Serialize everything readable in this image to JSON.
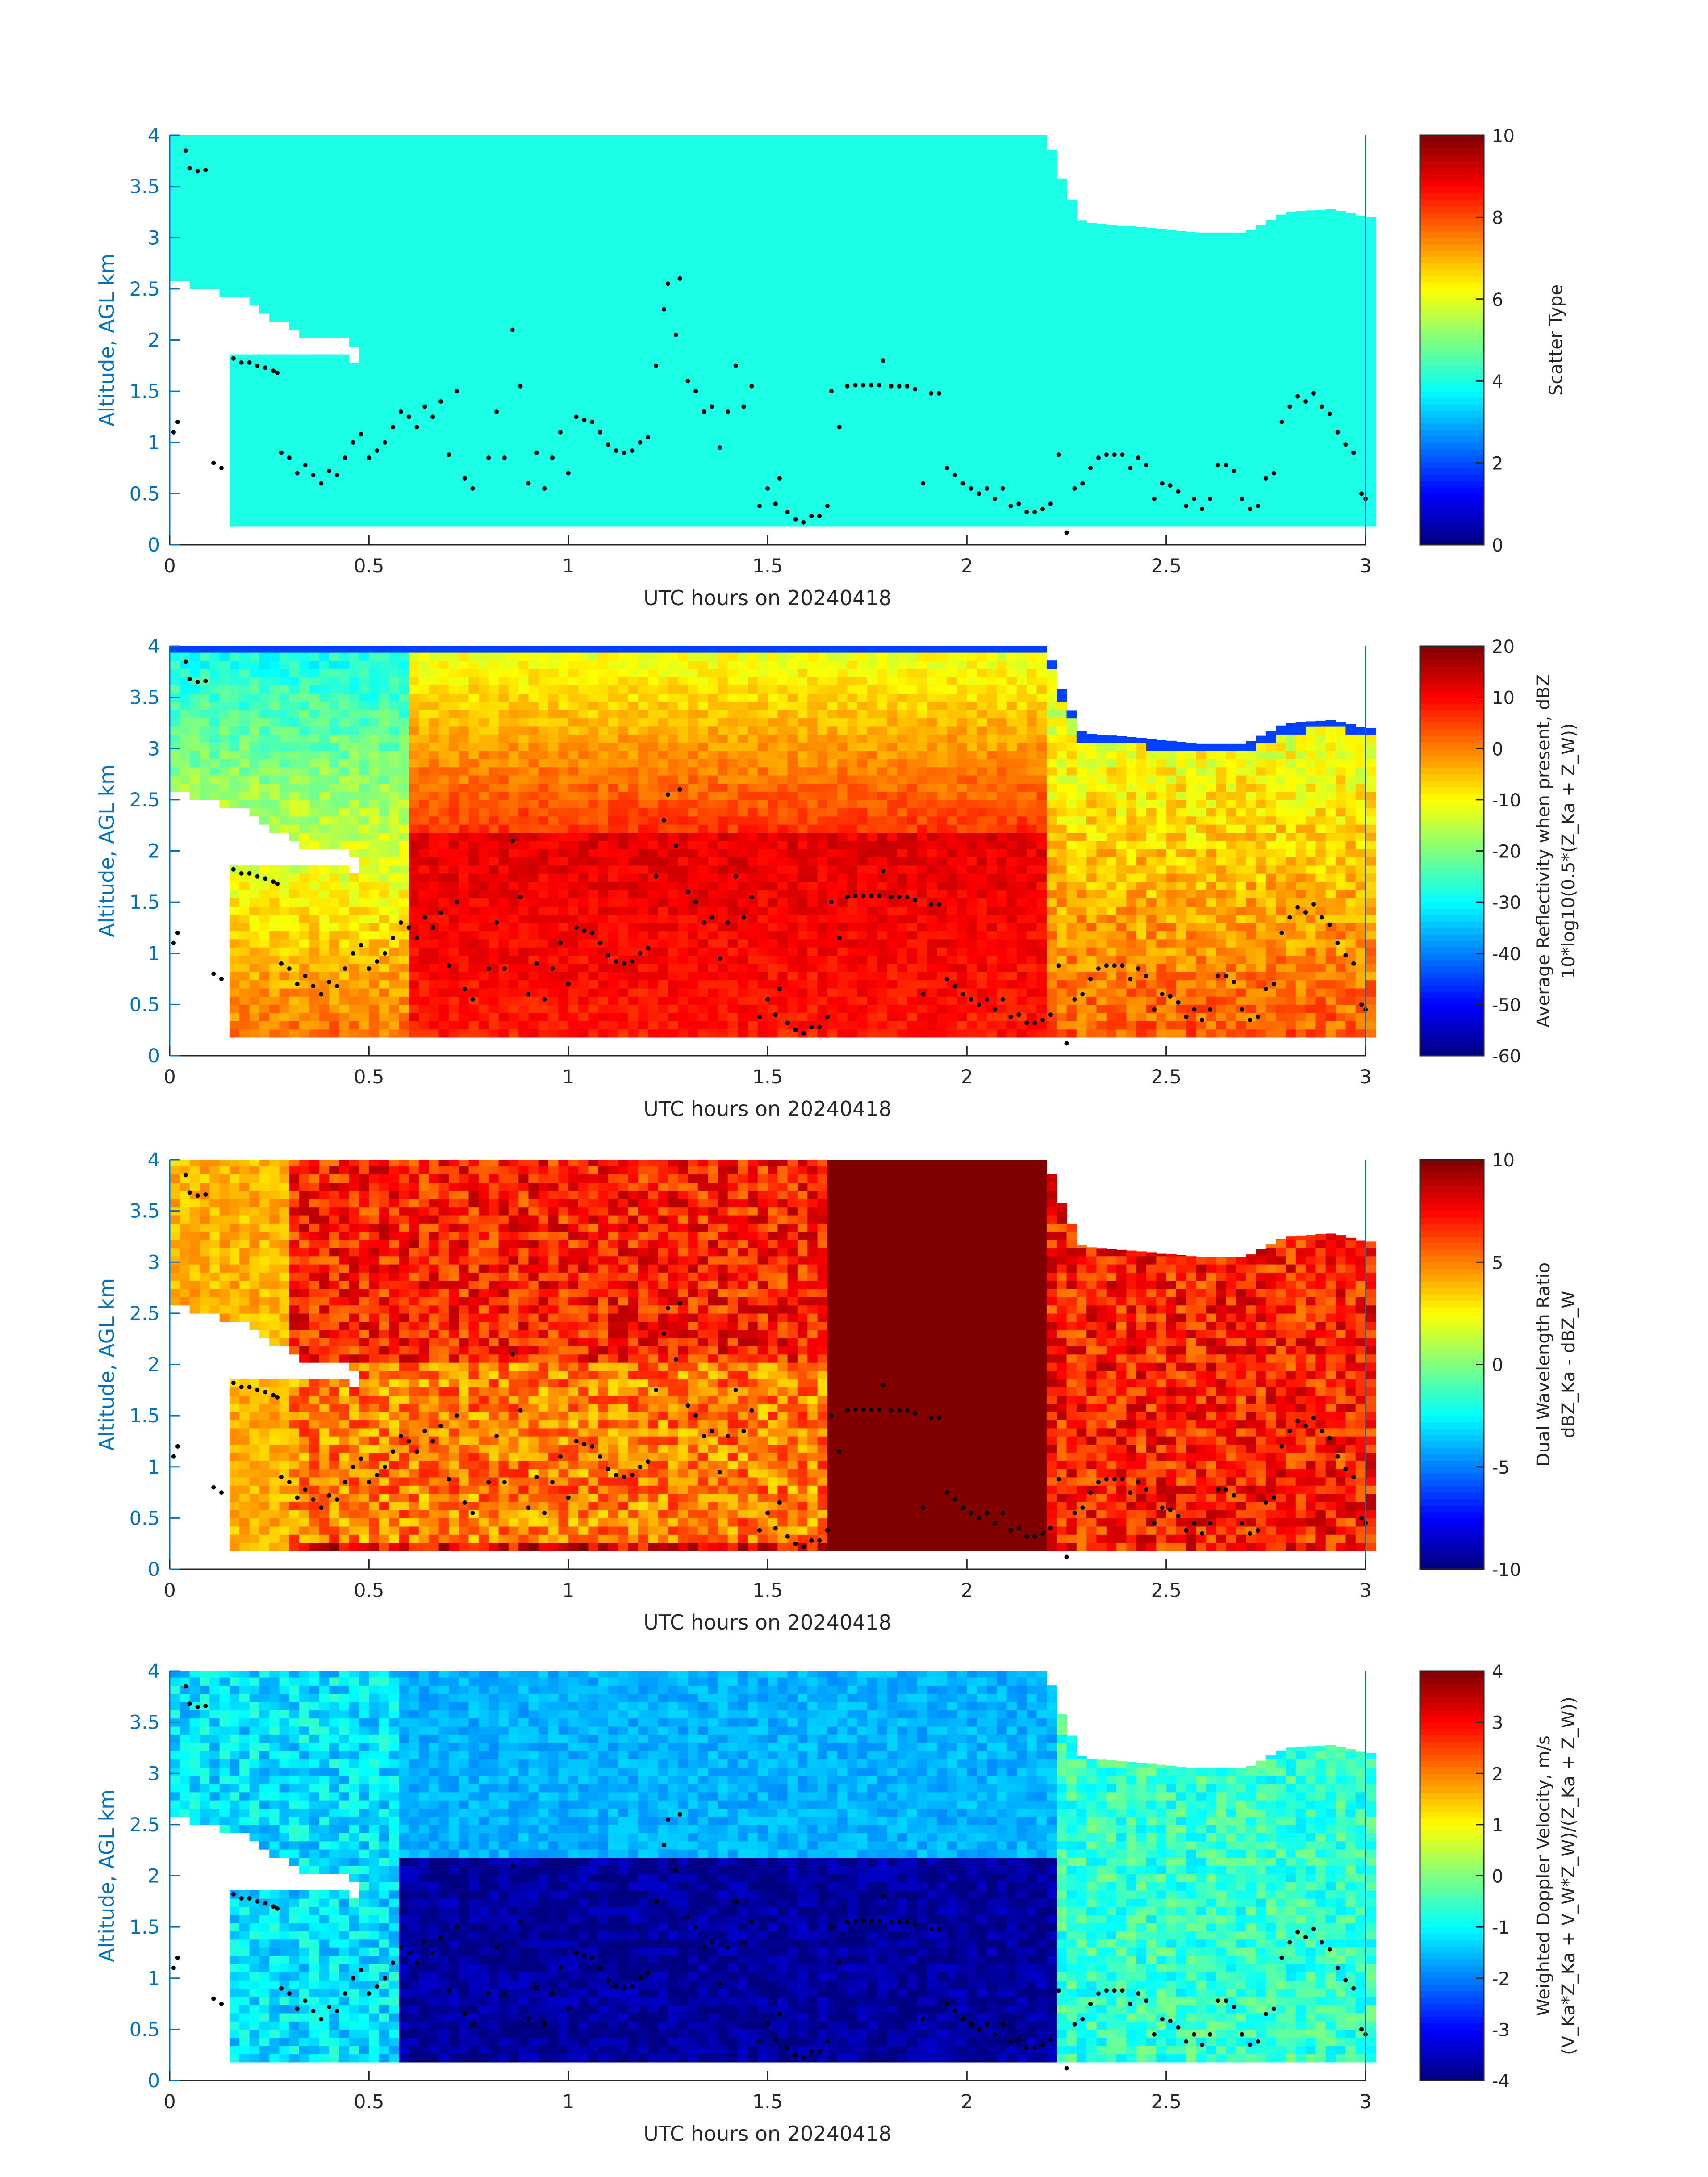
{
  "figure": {
    "background": "#ffffff",
    "axis_color": "#0072bd",
    "text_color": "#262626",
    "dot_color": "#000000"
  },
  "chart_data": [
    {
      "type": "heatmap",
      "xlabel": "UTC hours on 20240418",
      "ylabel": "Altitude, AGL km",
      "xlim": [
        0,
        3
      ],
      "ylim": [
        0,
        4
      ],
      "xticks": [
        0,
        0.5,
        1,
        1.5,
        2,
        2.5,
        3
      ],
      "xtick_labels": [
        "0",
        "0.5",
        "1",
        "1.5",
        "2",
        "2.5",
        "3"
      ],
      "yticks": [
        0,
        0.5,
        1,
        1.5,
        2,
        2.5,
        3,
        3.5,
        4
      ],
      "ytick_labels": [
        "0",
        "0.5",
        "1",
        "1.5",
        "2",
        "2.5",
        "3",
        "3.5",
        "4"
      ],
      "colorbar": {
        "label_lines": [
          "Scatter Type"
        ],
        "clim": [
          0,
          10
        ],
        "ticks": [
          0,
          2,
          4,
          6,
          8,
          10
        ],
        "tick_labels": [
          "0",
          "2",
          "4",
          "6",
          "8",
          "10"
        ],
        "colormap": "jet"
      },
      "field": "scatter_type"
    },
    {
      "type": "heatmap",
      "xlabel": "UTC hours on 20240418",
      "ylabel": "Altitude, AGL km",
      "xlim": [
        0,
        3
      ],
      "ylim": [
        0,
        4
      ],
      "xticks": [
        0,
        0.5,
        1,
        1.5,
        2,
        2.5,
        3
      ],
      "xtick_labels": [
        "0",
        "0.5",
        "1",
        "1.5",
        "2",
        "2.5",
        "3"
      ],
      "yticks": [
        0,
        0.5,
        1,
        1.5,
        2,
        2.5,
        3,
        3.5,
        4
      ],
      "ytick_labels": [
        "0",
        "0.5",
        "1",
        "1.5",
        "2",
        "2.5",
        "3",
        "3.5",
        "4"
      ],
      "colorbar": {
        "label_lines": [
          "Average Reflectivity when present, dBZ",
          "10*log10(0.5*(Z_Ka + Z_W))"
        ],
        "clim": [
          -60,
          20
        ],
        "ticks": [
          -60,
          -50,
          -40,
          -30,
          -20,
          -10,
          0,
          10,
          20
        ],
        "tick_labels": [
          "-60",
          "-50",
          "-40",
          "-30",
          "-20",
          "-10",
          "0",
          "10",
          "20"
        ],
        "colormap": "jet"
      },
      "field": "reflectivity"
    },
    {
      "type": "heatmap",
      "xlabel": "UTC hours on 20240418",
      "ylabel": "Altitude, AGL km",
      "xlim": [
        0,
        3
      ],
      "ylim": [
        0,
        4
      ],
      "xticks": [
        0,
        0.5,
        1,
        1.5,
        2,
        2.5,
        3
      ],
      "xtick_labels": [
        "0",
        "0.5",
        "1",
        "1.5",
        "2",
        "2.5",
        "3"
      ],
      "yticks": [
        0,
        0.5,
        1,
        1.5,
        2,
        2.5,
        3,
        3.5,
        4
      ],
      "ytick_labels": [
        "0",
        "0.5",
        "1",
        "1.5",
        "2",
        "2.5",
        "3",
        "3.5",
        "4"
      ],
      "colorbar": {
        "label_lines": [
          "Dual Wavelength Ratio",
          "dBZ_Ka - dBZ_W"
        ],
        "clim": [
          -10,
          10
        ],
        "ticks": [
          -10,
          -5,
          0,
          5,
          10
        ],
        "tick_labels": [
          "-10",
          "-5",
          "0",
          "5",
          "10"
        ],
        "colormap": "jet"
      },
      "field": "dwr"
    },
    {
      "type": "heatmap",
      "xlabel": "UTC hours on 20240418",
      "ylabel": "Altitude, AGL km",
      "xlim": [
        0,
        3
      ],
      "ylim": [
        0,
        4
      ],
      "xticks": [
        0,
        0.5,
        1,
        1.5,
        2,
        2.5,
        3
      ],
      "xtick_labels": [
        "0",
        "0.5",
        "1",
        "1.5",
        "2",
        "2.5",
        "3"
      ],
      "yticks": [
        0,
        0.5,
        1,
        1.5,
        2,
        2.5,
        3,
        3.5,
        4
      ],
      "ytick_labels": [
        "0",
        "0.5",
        "1",
        "1.5",
        "2",
        "2.5",
        "3",
        "3.5",
        "4"
      ],
      "colorbar": {
        "label_lines": [
          "Weighted Doppler Velocity, m/s",
          "(V_Ka*Z_Ka + V_W*Z_W)/(Z_Ka + Z_W))"
        ],
        "clim": [
          -4,
          4
        ],
        "ticks": [
          -4,
          -3,
          -2,
          -1,
          0,
          1,
          2,
          3,
          4
        ],
        "tick_labels": [
          "-4",
          "-3",
          "-2",
          "-1",
          "0",
          "1",
          "2",
          "3",
          "4"
        ],
        "colormap": "jet"
      },
      "field": "velocity"
    }
  ],
  "cloud_mask": {
    "top_profile": [
      [
        0.0,
        4.0
      ],
      [
        2.2,
        4.0
      ],
      [
        2.24,
        3.55
      ],
      [
        2.29,
        3.15
      ],
      [
        2.45,
        3.1
      ],
      [
        2.58,
        3.05
      ],
      [
        2.7,
        3.05
      ],
      [
        2.8,
        3.25
      ],
      [
        2.92,
        3.28
      ],
      [
        3.0,
        3.2
      ]
    ],
    "base_km": 0.18,
    "gap_region": [
      [
        0.0,
        2.6
      ],
      [
        0.08,
        2.5
      ],
      [
        0.18,
        2.42
      ],
      [
        0.27,
        2.2
      ],
      [
        0.32,
        2.05
      ],
      [
        0.42,
        2.0
      ],
      [
        0.48,
        1.95
      ],
      [
        0.48,
        1.8
      ],
      [
        0.35,
        1.87
      ],
      [
        0.25,
        1.9
      ],
      [
        0.15,
        1.85
      ],
      [
        0.15,
        0.2
      ],
      [
        0.0,
        0.2
      ]
    ]
  },
  "cloud_top_dots": [
    [
      0.01,
      1.1
    ],
    [
      0.02,
      1.2
    ],
    [
      0.04,
      3.85
    ],
    [
      0.05,
      3.68
    ],
    [
      0.07,
      3.65
    ],
    [
      0.09,
      3.66
    ],
    [
      0.11,
      0.8
    ],
    [
      0.13,
      0.75
    ],
    [
      0.16,
      1.82
    ],
    [
      0.18,
      1.78
    ],
    [
      0.2,
      1.78
    ],
    [
      0.22,
      1.75
    ],
    [
      0.24,
      1.73
    ],
    [
      0.26,
      1.7
    ],
    [
      0.27,
      1.68
    ],
    [
      0.28,
      0.9
    ],
    [
      0.3,
      0.85
    ],
    [
      0.32,
      0.7
    ],
    [
      0.34,
      0.78
    ],
    [
      0.36,
      0.68
    ],
    [
      0.38,
      0.6
    ],
    [
      0.4,
      0.72
    ],
    [
      0.42,
      0.68
    ],
    [
      0.44,
      0.85
    ],
    [
      0.46,
      1.0
    ],
    [
      0.48,
      1.08
    ],
    [
      0.5,
      0.85
    ],
    [
      0.52,
      0.92
    ],
    [
      0.54,
      1.0
    ],
    [
      0.56,
      1.15
    ],
    [
      0.58,
      1.3
    ],
    [
      0.6,
      1.25
    ],
    [
      0.62,
      1.15
    ],
    [
      0.64,
      1.35
    ],
    [
      0.66,
      1.25
    ],
    [
      0.68,
      1.4
    ],
    [
      0.7,
      0.88
    ],
    [
      0.72,
      1.5
    ],
    [
      0.74,
      0.65
    ],
    [
      0.76,
      0.55
    ],
    [
      0.8,
      0.85
    ],
    [
      0.82,
      1.3
    ],
    [
      0.84,
      0.85
    ],
    [
      0.86,
      2.1
    ],
    [
      0.88,
      1.55
    ],
    [
      0.9,
      0.6
    ],
    [
      0.92,
      0.9
    ],
    [
      0.94,
      0.55
    ],
    [
      0.96,
      0.85
    ],
    [
      0.98,
      1.1
    ],
    [
      1.0,
      0.7
    ],
    [
      1.02,
      1.25
    ],
    [
      1.04,
      1.22
    ],
    [
      1.06,
      1.2
    ],
    [
      1.08,
      1.1
    ],
    [
      1.1,
      0.98
    ],
    [
      1.12,
      0.92
    ],
    [
      1.14,
      0.9
    ],
    [
      1.16,
      0.92
    ],
    [
      1.18,
      1.0
    ],
    [
      1.2,
      1.05
    ],
    [
      1.22,
      1.75
    ],
    [
      1.24,
      2.3
    ],
    [
      1.25,
      2.55
    ],
    [
      1.27,
      2.05
    ],
    [
      1.28,
      2.6
    ],
    [
      1.3,
      1.6
    ],
    [
      1.32,
      1.5
    ],
    [
      1.34,
      1.3
    ],
    [
      1.36,
      1.35
    ],
    [
      1.38,
      0.95
    ],
    [
      1.4,
      1.3
    ],
    [
      1.42,
      1.75
    ],
    [
      1.44,
      1.35
    ],
    [
      1.46,
      1.55
    ],
    [
      1.48,
      0.38
    ],
    [
      1.5,
      0.55
    ],
    [
      1.52,
      0.4
    ],
    [
      1.53,
      0.65
    ],
    [
      1.55,
      0.32
    ],
    [
      1.57,
      0.25
    ],
    [
      1.59,
      0.22
    ],
    [
      1.61,
      0.28
    ],
    [
      1.63,
      0.28
    ],
    [
      1.65,
      0.38
    ],
    [
      1.66,
      1.5
    ],
    [
      1.68,
      1.15
    ],
    [
      1.7,
      1.55
    ],
    [
      1.72,
      1.56
    ],
    [
      1.74,
      1.56
    ],
    [
      1.76,
      1.56
    ],
    [
      1.78,
      1.56
    ],
    [
      1.79,
      1.8
    ],
    [
      1.81,
      1.55
    ],
    [
      1.83,
      1.55
    ],
    [
      1.85,
      1.55
    ],
    [
      1.87,
      1.52
    ],
    [
      1.89,
      0.6
    ],
    [
      1.91,
      1.48
    ],
    [
      1.93,
      1.48
    ],
    [
      1.95,
      0.75
    ],
    [
      1.97,
      0.68
    ],
    [
      1.99,
      0.6
    ],
    [
      2.01,
      0.55
    ],
    [
      2.03,
      0.5
    ],
    [
      2.05,
      0.55
    ],
    [
      2.07,
      0.45
    ],
    [
      2.09,
      0.55
    ],
    [
      2.11,
      0.38
    ],
    [
      2.13,
      0.4
    ],
    [
      2.15,
      0.32
    ],
    [
      2.17,
      0.32
    ],
    [
      2.19,
      0.35
    ],
    [
      2.21,
      0.4
    ],
    [
      2.23,
      0.88
    ],
    [
      2.25,
      0.12
    ],
    [
      2.27,
      0.55
    ],
    [
      2.29,
      0.6
    ],
    [
      2.31,
      0.75
    ],
    [
      2.33,
      0.85
    ],
    [
      2.35,
      0.88
    ],
    [
      2.37,
      0.88
    ],
    [
      2.39,
      0.88
    ],
    [
      2.41,
      0.75
    ],
    [
      2.43,
      0.85
    ],
    [
      2.45,
      0.78
    ],
    [
      2.47,
      0.45
    ],
    [
      2.49,
      0.6
    ],
    [
      2.51,
      0.58
    ],
    [
      2.53,
      0.52
    ],
    [
      2.55,
      0.38
    ],
    [
      2.57,
      0.45
    ],
    [
      2.59,
      0.35
    ],
    [
      2.61,
      0.45
    ],
    [
      2.63,
      0.78
    ],
    [
      2.65,
      0.78
    ],
    [
      2.67,
      0.72
    ],
    [
      2.69,
      0.45
    ],
    [
      2.71,
      0.35
    ],
    [
      2.73,
      0.38
    ],
    [
      2.75,
      0.65
    ],
    [
      2.77,
      0.7
    ],
    [
      2.79,
      1.2
    ],
    [
      2.81,
      1.35
    ],
    [
      2.83,
      1.45
    ],
    [
      2.85,
      1.4
    ],
    [
      2.87,
      1.48
    ],
    [
      2.89,
      1.35
    ],
    [
      2.91,
      1.28
    ],
    [
      2.93,
      1.1
    ],
    [
      2.95,
      0.98
    ],
    [
      2.97,
      0.9
    ],
    [
      2.99,
      0.5
    ],
    [
      3.0,
      0.45
    ]
  ]
}
